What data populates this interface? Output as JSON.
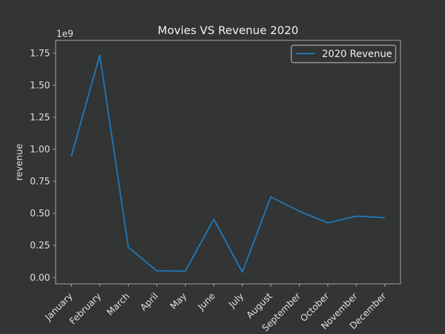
{
  "chart_data": {
    "type": "line",
    "title": "Movies VS Revenue 2020",
    "xlabel": "",
    "ylabel": "revenue",
    "y_offset_text": "1e9",
    "categories": [
      "January",
      "February",
      "March",
      "April",
      "May",
      "June",
      "July",
      "August",
      "September",
      "October",
      "November",
      "December"
    ],
    "series": [
      {
        "name": "2020 Revenue",
        "color": "#1f77b4",
        "values": [
          945000000,
          1735000000,
          237000000,
          52000000,
          50000000,
          455000000,
          42000000,
          628000000,
          517000000,
          426000000,
          479000000,
          466000000
        ]
      }
    ],
    "ylim": [
      -50000000.0,
      1850000000.0
    ],
    "yticks": [
      0,
      250000000.0,
      500000000.0,
      750000000.0,
      1000000000.0,
      1250000000.0,
      1500000000.0,
      1750000000.0
    ],
    "ytick_labels": [
      "0.00",
      "0.25",
      "0.50",
      "0.75",
      "1.00",
      "1.25",
      "1.50",
      "1.75"
    ],
    "legend": "top-right",
    "grid": false
  },
  "colors": {
    "background": "#333434",
    "axes_frame": "#a8a8a8",
    "text": "#e0e0e0",
    "line": "#1f77b4"
  }
}
